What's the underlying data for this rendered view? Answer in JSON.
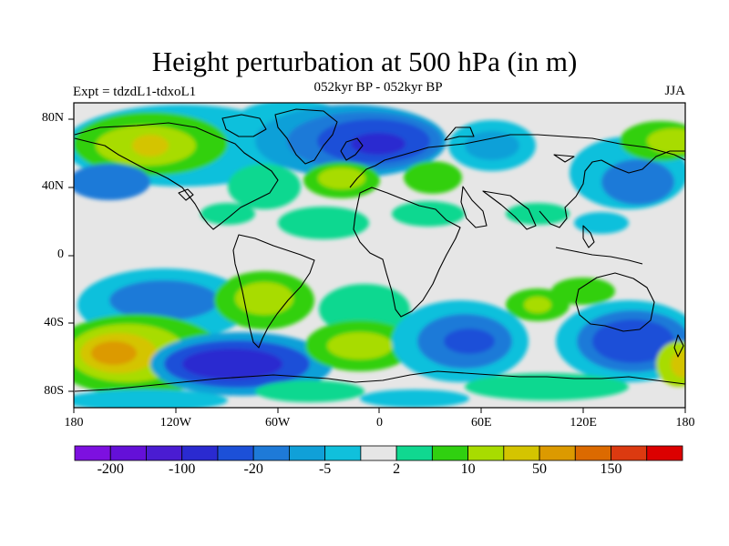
{
  "title": "Height perturbation at 500 hPa (in m)",
  "subtitle": "052kyr BP - 052kyr BP",
  "left_label": "Expt = tdzdL1-tdxoL1",
  "right_label": "JJA",
  "lat_ticks": [
    {
      "value": 80,
      "label": "80N"
    },
    {
      "value": 40,
      "label": "40N"
    },
    {
      "value": 0,
      "label": "0"
    },
    {
      "value": -40,
      "label": "40S"
    },
    {
      "value": -80,
      "label": "80S"
    }
  ],
  "lon_ticks": [
    {
      "value": -180,
      "label": "180"
    },
    {
      "value": -120,
      "label": "120W"
    },
    {
      "value": -60,
      "label": "60W"
    },
    {
      "value": 0,
      "label": "0"
    },
    {
      "value": 60,
      "label": "60E"
    },
    {
      "value": 120,
      "label": "120E"
    },
    {
      "value": 180,
      "label": "180"
    }
  ],
  "colorbar": {
    "colors": [
      "#7d10e0",
      "#6410d8",
      "#4a1cd2",
      "#2a2ad0",
      "#1c50d8",
      "#1e7ad8",
      "#10a0d8",
      "#10c0dc",
      "#e6e6e6",
      "#10d890",
      "#30d010",
      "#a8dc00",
      "#d4c400",
      "#dc9a00",
      "#dc6a00",
      "#dc3a10",
      "#dc0000"
    ],
    "labels": [
      {
        "boundary": 1,
        "text": "-200"
      },
      {
        "boundary": 3,
        "text": "-100"
      },
      {
        "boundary": 5,
        "text": "-20"
      },
      {
        "boundary": 7,
        "text": "-5"
      },
      {
        "boundary": 9,
        "text": "2"
      },
      {
        "boundary": 11,
        "text": "10"
      },
      {
        "boundary": 13,
        "text": "50"
      },
      {
        "boundary": 15,
        "text": "150"
      }
    ]
  }
}
